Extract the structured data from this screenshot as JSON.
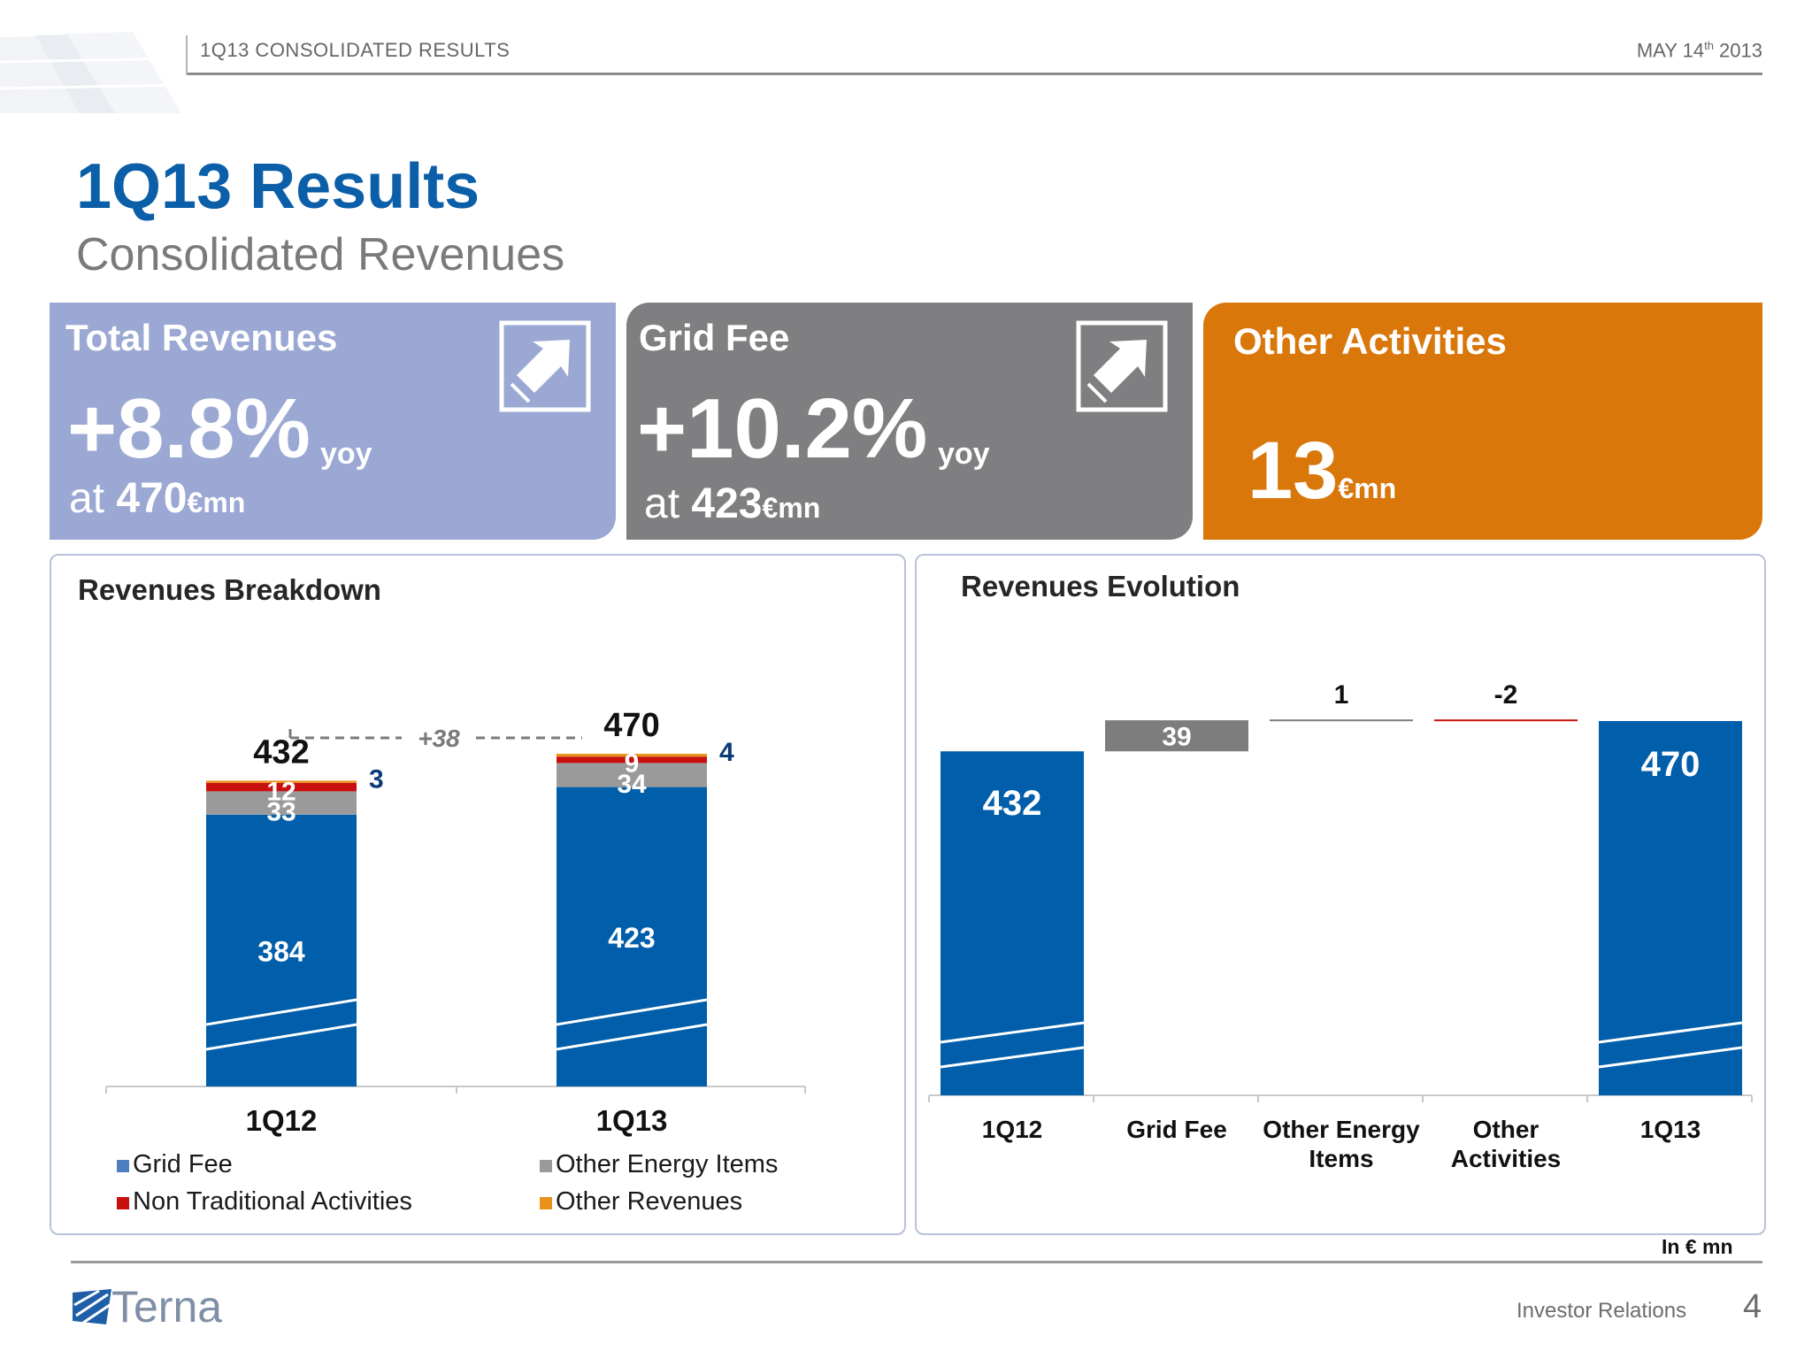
{
  "header": {
    "section": "1Q13 CONSOLIDATED RESULTS",
    "date_prefix": "MAY 14",
    "date_sup": "th",
    "date_year": " 2013"
  },
  "title": "1Q13 Results",
  "subtitle": "Consolidated Revenues",
  "kpis": [
    {
      "title": "Total Revenues",
      "value": "+8.8%",
      "yoy": "yoy",
      "at": "at ",
      "amount": "470",
      "unit": "€mn",
      "color": "#9aa8d3",
      "icon": "trend-up-arrow-icon"
    },
    {
      "title": "Grid Fee",
      "value": "+10.2%",
      "yoy": "yoy",
      "at": "at ",
      "amount": "423",
      "unit": "€mn",
      "color": "#7f7e80",
      "icon": "trend-up-arrow-icon"
    },
    {
      "title": "Other Activities",
      "amount": "13",
      "unit": "€mn",
      "color": "#d9770b"
    }
  ],
  "breakdown": {
    "title": "Revenues Breakdown",
    "diff_label": "+38"
  },
  "evolution": {
    "title": "Revenues Evolution"
  },
  "colors": {
    "grid_fee": "#005eab",
    "other_energy": "#9a9a9a",
    "non_traditional": "#c8100e",
    "other_revenues": "#e8921c",
    "waterfall_delta": "#7d7d7d",
    "waterfall_negative": "#c8100e"
  },
  "chart_data": [
    {
      "type": "bar",
      "stacked": true,
      "title": "Revenues Breakdown",
      "categories": [
        "1Q12",
        "1Q13"
      ],
      "series": [
        {
          "name": "Grid Fee",
          "values": [
            384,
            423
          ]
        },
        {
          "name": "Other Energy Items",
          "values": [
            33,
            34
          ]
        },
        {
          "name": "Non Traditional Activities",
          "values": [
            12,
            9
          ]
        },
        {
          "name": "Other Revenues",
          "values": [
            3,
            4
          ]
        }
      ],
      "totals": [
        432,
        470
      ],
      "annotation": "+38",
      "legend": "bottom"
    },
    {
      "type": "bar",
      "waterfall": true,
      "title": "Revenues Evolution",
      "categories": [
        "1Q12",
        "Grid Fee",
        "Other Energy Items",
        "Other Activities",
        "1Q13"
      ],
      "values": [
        432,
        39,
        1,
        -2,
        470
      ],
      "labels": [
        "432",
        "39",
        "1",
        "-2",
        "470"
      ],
      "unit_note": "In € mn"
    }
  ],
  "footer": {
    "logo": "Terna",
    "right": "Investor Relations",
    "page": "4"
  }
}
